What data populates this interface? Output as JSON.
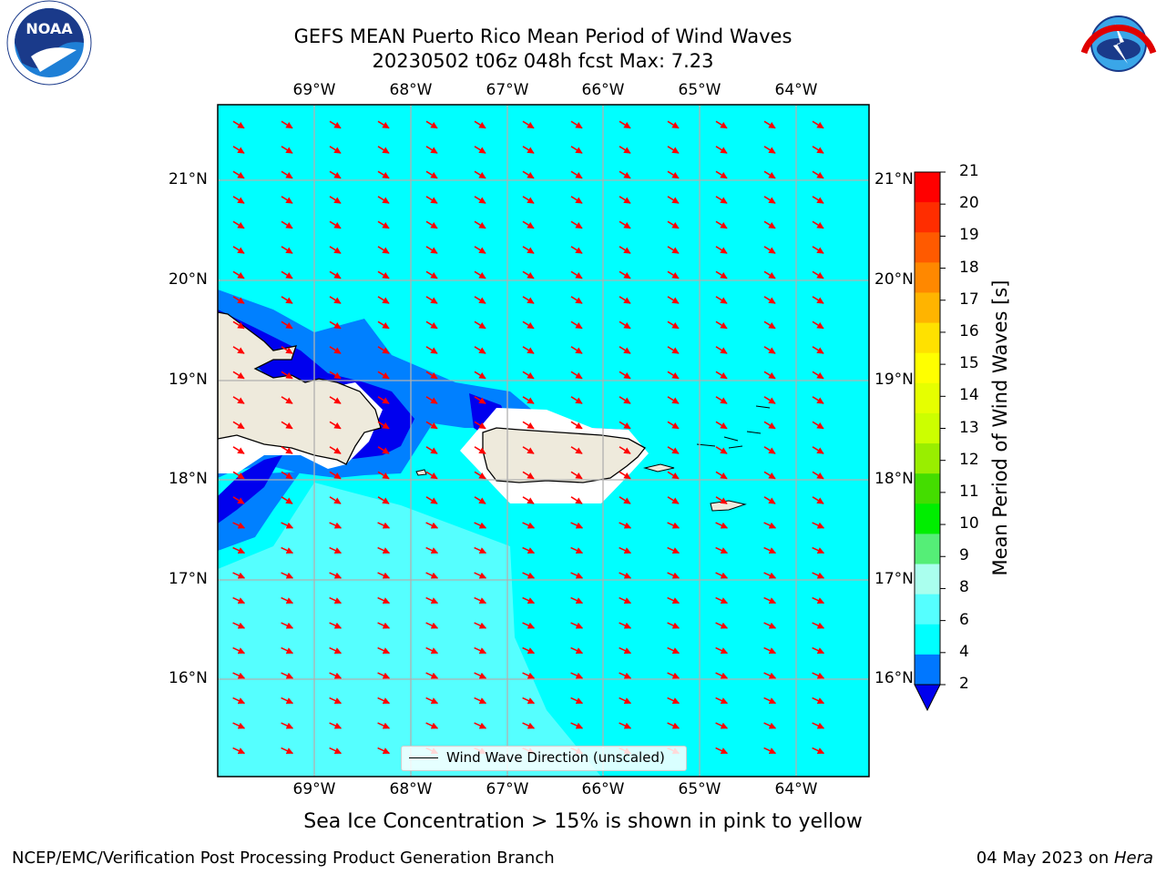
{
  "title_line1": "GEFS MEAN Puerto Rico Mean Period of Wind Waves",
  "title_line2": "20230502 t06z 048h fcst   Max: 7.23",
  "axes": {
    "lon_labels": [
      "69°W",
      "68°W",
      "67°W",
      "66°W",
      "65°W",
      "64°W"
    ],
    "lat_labels": [
      "21°N",
      "20°N",
      "19°N",
      "18°N",
      "17°N",
      "16°N"
    ]
  },
  "legend_label": "Wind Wave Direction (unscaled)",
  "colorbar": {
    "title": "Mean Period of Wind Waves [s]",
    "ticks": [
      "21",
      "20",
      "19",
      "18",
      "17",
      "16",
      "15",
      "14",
      "13",
      "12",
      "11",
      "10",
      "9",
      "8",
      "6",
      "4",
      "2"
    ],
    "colors": [
      "#ff0000",
      "#ff2d00",
      "#ff5a00",
      "#ff8800",
      "#ffb400",
      "#ffe100",
      "#ffff00",
      "#e6ff00",
      "#ccff00",
      "#99ee00",
      "#44dd00",
      "#00ee00",
      "#55ee77",
      "#aaffee",
      "#55ffff",
      "#00ffff",
      "#0077ff",
      "#0000ee"
    ]
  },
  "subnote": "Sea Ice Concentration > 15% is shown in pink to yellow",
  "footer_left": "NCEP/EMC/Verification Post Processing Product Generation Branch",
  "footer_date": "04 May 2023 on ",
  "footer_host": "Hera",
  "logos": {
    "left": "NOAA",
    "right": "NATIONAL WEATHER SERVICE"
  },
  "colors": {
    "ocean": "#00ffff",
    "land": "#eeeadc",
    "arrow": "#ff0000",
    "grid": "#b0b0b0",
    "light_cyan": "#55ffff",
    "blue": "#0080ff",
    "dark_blue": "#0000ee"
  }
}
